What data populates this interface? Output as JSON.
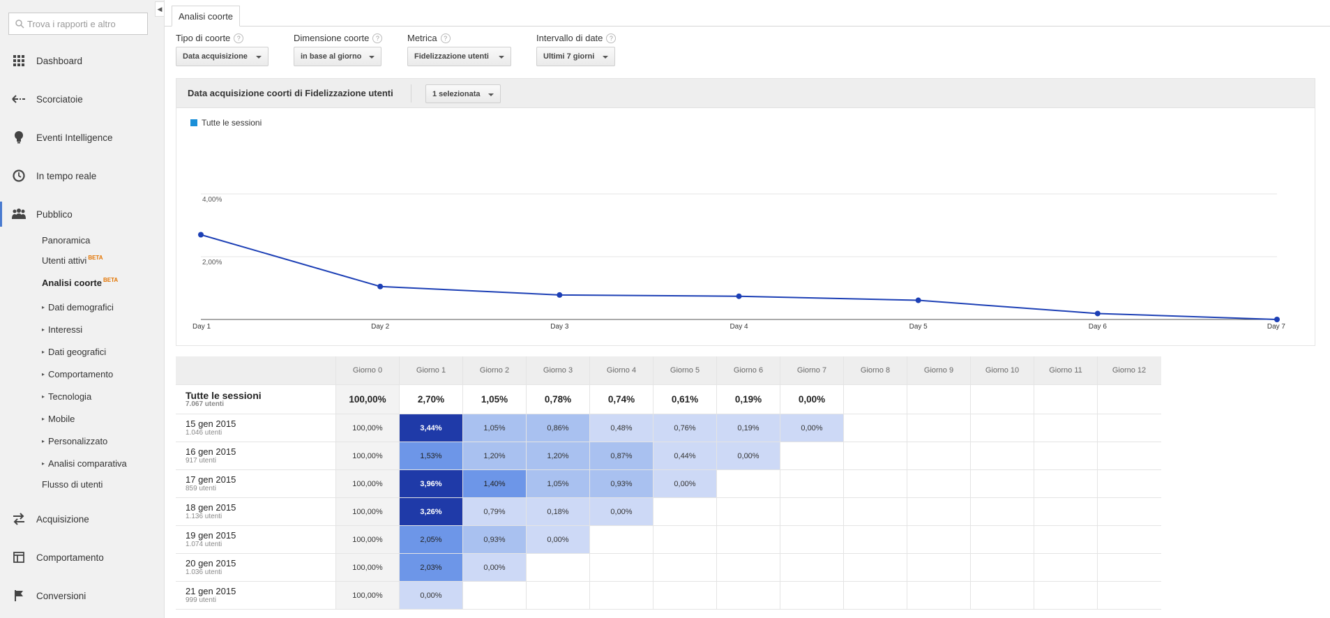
{
  "sidebar": {
    "search_placeholder": "Trova i rapporti e altro",
    "main_items": [
      {
        "label": "Dashboard",
        "icon": "grid-icon"
      },
      {
        "label": "Scorciatoie",
        "icon": "shortcut-arrow-icon"
      },
      {
        "label": "Eventi Intelligence",
        "icon": "lightbulb-icon"
      },
      {
        "label": "In tempo reale",
        "icon": "clock-icon"
      },
      {
        "label": "Pubblico",
        "icon": "people-icon"
      },
      {
        "label": "Acquisizione",
        "icon": "acquisition-arrows-icon"
      },
      {
        "label": "Comportamento",
        "icon": "layout-icon"
      },
      {
        "label": "Conversioni",
        "icon": "flag-icon"
      }
    ],
    "sub_items": [
      {
        "label": "Panoramica"
      },
      {
        "label": "Utenti attivi",
        "badge": "BETA"
      },
      {
        "label": "Analisi coorte",
        "badge": "BETA",
        "active": true
      },
      {
        "label": "Dati demografici",
        "expandable": true
      },
      {
        "label": "Interessi",
        "expandable": true
      },
      {
        "label": "Dati geografici",
        "expandable": true
      },
      {
        "label": "Comportamento",
        "expandable": true
      },
      {
        "label": "Tecnologia",
        "expandable": true
      },
      {
        "label": "Mobile",
        "expandable": true
      },
      {
        "label": "Personalizzato",
        "expandable": true
      },
      {
        "label": "Analisi comparativa",
        "expandable": true
      },
      {
        "label": "Flusso di utenti"
      }
    ]
  },
  "tab": {
    "label": "Analisi coorte"
  },
  "controls": [
    {
      "label": "Tipo di coorte",
      "value": "Data acquisizione"
    },
    {
      "label": "Dimensione coorte",
      "value": "in base al giorno"
    },
    {
      "label": "Metrica",
      "value": "Fidelizzazione utenti"
    },
    {
      "label": "Intervallo di date",
      "value": "Ultimi 7 giorni"
    }
  ],
  "chart_panel": {
    "title": "Data acquisizione coorti di Fidelizzazione utenti",
    "selector": "1 selezionata"
  },
  "chart_data": {
    "type": "line",
    "categories": [
      "Day 1",
      "Day 2",
      "Day 3",
      "Day 4",
      "Day 5",
      "Day 6",
      "Day 7"
    ],
    "series": [
      {
        "name": "Tutte le sessioni",
        "values": [
          2.7,
          1.05,
          0.78,
          0.74,
          0.61,
          0.19,
          0.0
        ],
        "color": "#1c3fb5"
      }
    ],
    "ylim": [
      0,
      4
    ],
    "yticks": [
      "2,00%",
      "4,00%"
    ],
    "ytick_values": [
      2,
      4
    ],
    "grid": true,
    "legend": "top-left"
  },
  "table": {
    "columns": [
      "Giorno 0",
      "Giorno 1",
      "Giorno 2",
      "Giorno 3",
      "Giorno 4",
      "Giorno 5",
      "Giorno 6",
      "Giorno 7",
      "Giorno 8",
      "Giorno 9",
      "Giorno 10",
      "Giorno 11",
      "Giorno 12"
    ],
    "total": {
      "label": "Tutte le sessioni",
      "users": "7.067 utenti",
      "values": [
        "100,00%",
        "2,70%",
        "1,05%",
        "0,78%",
        "0,74%",
        "0,61%",
        "0,19%",
        "0,00%"
      ]
    },
    "rows": [
      {
        "label": "15 gen 2015",
        "users": "1.046 utenti",
        "values": [
          "100,00%",
          "3,44%",
          "1,05%",
          "0,86%",
          "0,48%",
          "0,76%",
          "0,19%",
          "0,00%"
        ]
      },
      {
        "label": "16 gen 2015",
        "users": "917 utenti",
        "values": [
          "100,00%",
          "1,53%",
          "1,20%",
          "1,20%",
          "0,87%",
          "0,44%",
          "0,00%"
        ]
      },
      {
        "label": "17 gen 2015",
        "users": "859 utenti",
        "values": [
          "100,00%",
          "3,96%",
          "1,40%",
          "1,05%",
          "0,93%",
          "0,00%"
        ]
      },
      {
        "label": "18 gen 2015",
        "users": "1.136 utenti",
        "values": [
          "100,00%",
          "3,26%",
          "0,79%",
          "0,18%",
          "0,00%"
        ]
      },
      {
        "label": "19 gen 2015",
        "users": "1.074 utenti",
        "values": [
          "100,00%",
          "2,05%",
          "0,93%",
          "0,00%"
        ]
      },
      {
        "label": "20 gen 2015",
        "users": "1.036 utenti",
        "values": [
          "100,00%",
          "2,03%",
          "0,00%"
        ]
      },
      {
        "label": "21 gen 2015",
        "users": "999 utenti",
        "values": [
          "100,00%",
          "0,00%"
        ]
      }
    ]
  },
  "colors": {
    "heat_dark": "#1f3aa8",
    "heat_mid": "#6d96e8",
    "heat_light": "#a9c1f0",
    "heat_pale": "#cdd9f6",
    "line": "#1c3fb5",
    "legend_swatch": "#1a8fd8"
  }
}
